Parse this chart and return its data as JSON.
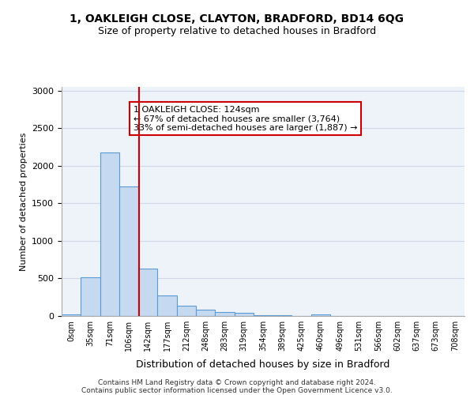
{
  "title_line1": "1, OAKLEIGH CLOSE, CLAYTON, BRADFORD, BD14 6QG",
  "title_line2": "Size of property relative to detached houses in Bradford",
  "xlabel": "Distribution of detached houses by size in Bradford",
  "ylabel": "Number of detached properties",
  "bin_labels": [
    "0sqm",
    "35sqm",
    "71sqm",
    "106sqm",
    "142sqm",
    "177sqm",
    "212sqm",
    "248sqm",
    "283sqm",
    "319sqm",
    "354sqm",
    "389sqm",
    "425sqm",
    "460sqm",
    "496sqm",
    "531sqm",
    "566sqm",
    "602sqm",
    "637sqm",
    "673sqm",
    "708sqm"
  ],
  "bar_values": [
    20,
    520,
    2180,
    1720,
    630,
    270,
    140,
    80,
    55,
    40,
    15,
    10,
    5,
    20,
    5,
    5,
    3,
    3,
    2,
    2,
    2
  ],
  "bar_color": "#c5d9f0",
  "bar_edge_color": "#5b9bd5",
  "property_line_x": 3.54,
  "property_sqm": 124,
  "annotation_text": "1 OAKLEIGH CLOSE: 124sqm\n← 67% of detached houses are smaller (3,764)\n33% of semi-detached houses are larger (1,887) →",
  "annotation_box_color": "#ffffff",
  "annotation_box_edge_color": "#cc0000",
  "vline_color": "#cc0000",
  "ylim": [
    0,
    3050
  ],
  "yticks": [
    0,
    500,
    1000,
    1500,
    2000,
    2500,
    3000
  ],
  "grid_color": "#d0d8e8",
  "footer_text": "Contains HM Land Registry data © Crown copyright and database right 2024.\nContains public sector information licensed under the Open Government Licence v3.0.",
  "bg_color": "#eef2f9"
}
